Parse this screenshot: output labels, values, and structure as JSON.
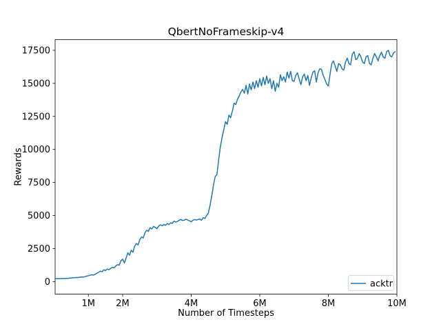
{
  "chart_data": {
    "type": "line",
    "title": "QbertNoFrameskip-v4",
    "xlabel": "Number of Timesteps",
    "ylabel": "Rewards",
    "grid": false,
    "legend_position": "lower right",
    "legend": [
      {
        "label": "acktr",
        "color": "#1f77b4"
      }
    ],
    "axis_color": "#000000",
    "legend_border_color": "#cccccc",
    "xlim_millions": [
      0.03,
      10.0
    ],
    "ylim": [
      -950,
      18300
    ],
    "xticks": [
      {
        "value_millions": 1,
        "label": "1M"
      },
      {
        "value_millions": 2,
        "label": "2M"
      },
      {
        "value_millions": 4,
        "label": "4M"
      },
      {
        "value_millions": 6,
        "label": "6M"
      },
      {
        "value_millions": 8,
        "label": "8M"
      },
      {
        "value_millions": 10,
        "label": "10M"
      }
    ],
    "yticks": [
      {
        "value": 0,
        "label": "0"
      },
      {
        "value": 2500,
        "label": "2500"
      },
      {
        "value": 5000,
        "label": "5000"
      },
      {
        "value": 7500,
        "label": "7500"
      },
      {
        "value": 10000,
        "label": "10000"
      },
      {
        "value": 12500,
        "label": "12500"
      },
      {
        "value": 15000,
        "label": "15000"
      },
      {
        "value": 17500,
        "label": "17500"
      }
    ],
    "series": [
      {
        "name": "acktr",
        "color": "#1f77b4",
        "x_unit": "millions_of_timesteps",
        "x_start": 0.05,
        "x_step": 0.05,
        "values": [
          230,
          215,
          235,
          225,
          245,
          235,
          255,
          245,
          265,
          275,
          285,
          295,
          315,
          305,
          335,
          355,
          345,
          375,
          415,
          450,
          480,
          520,
          495,
          560,
          640,
          700,
          790,
          745,
          890,
          840,
          950,
          900,
          1000,
          1090,
          1040,
          1190,
          1290,
          1240,
          1580,
          1700,
          1420,
          1780,
          2180,
          2000,
          2380,
          2220,
          2680,
          2880,
          2780,
          3180,
          3380,
          3300,
          3680,
          3880,
          3800,
          4080,
          3980,
          4180,
          4100,
          4000,
          4200,
          4300,
          4220,
          4320,
          4260,
          4400,
          4320,
          4450,
          4400,
          4580,
          4500,
          4560,
          4640,
          4700,
          4620,
          4660,
          4720,
          4660,
          4600,
          4520,
          4640,
          4700,
          4660,
          4700,
          4740,
          4640,
          4840,
          4780,
          5000,
          5180,
          5800,
          6500,
          7300,
          7950,
          8100,
          9200,
          10200,
          10900,
          11500,
          12100,
          11900,
          12600,
          12400,
          12900,
          13500,
          13400,
          13800,
          14050,
          14350,
          14550,
          14250,
          14850,
          14200,
          14950,
          14500,
          15100,
          14600,
          15200,
          14700,
          15350,
          14800,
          15450,
          14900,
          15550,
          15000,
          15350,
          14600,
          15200,
          14400,
          15000,
          14700,
          15650,
          15200,
          15500,
          15100,
          15850,
          15400,
          15900,
          15200,
          15150,
          15600,
          15800,
          15300,
          14900,
          15500,
          15700,
          15200,
          15600,
          14850,
          15400,
          15850,
          15950,
          15100,
          15800,
          16100,
          16050,
          15600,
          15300,
          14950,
          14800,
          15700,
          16500,
          16700,
          16300,
          15900,
          16500,
          16400,
          16100,
          16000,
          16600,
          16900,
          16500,
          16400,
          17200,
          17400,
          16800,
          16900,
          17250,
          17000,
          16600,
          16500,
          17000,
          17100,
          16500,
          16400,
          16900,
          17250,
          17000,
          16700,
          17100,
          17350,
          17000,
          16900,
          17400,
          17500,
          17100,
          17000,
          17300,
          17400
        ]
      }
    ]
  }
}
